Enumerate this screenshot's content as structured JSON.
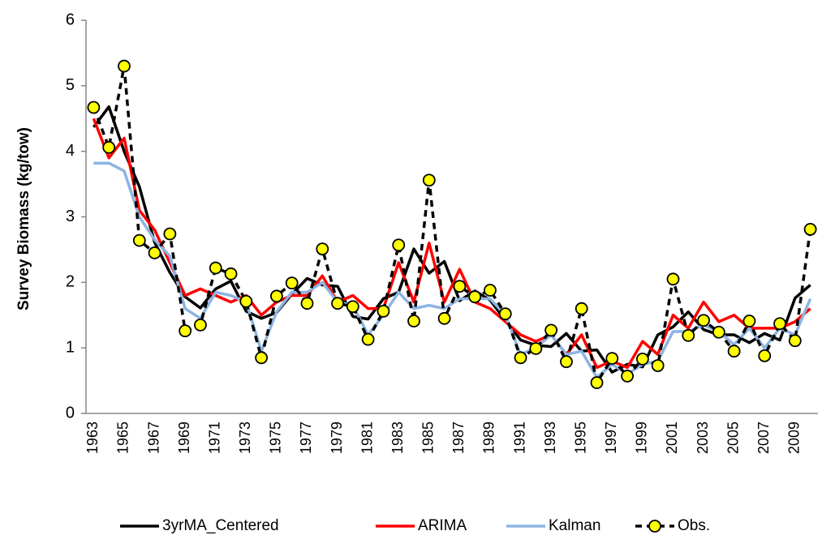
{
  "chart_data": {
    "type": "line",
    "y_label": "Survey Biomass (kg/tow)",
    "categories": [
      "1963",
      null,
      "1965",
      null,
      "1967",
      null,
      "1969",
      null,
      "1971",
      null,
      "1973",
      null,
      "1975",
      null,
      "1977",
      null,
      "1979",
      null,
      "1981",
      null,
      "1983",
      null,
      "1985",
      null,
      "1987",
      null,
      "1989",
      null,
      "1991",
      null,
      "1993",
      null,
      "1995",
      null,
      "1997",
      null,
      "1999",
      null,
      "2001",
      null,
      "2003",
      null,
      "2005",
      null,
      "2007",
      null,
      "2009",
      null
    ],
    "ylim": [
      0,
      6
    ],
    "yticks": [
      0,
      1,
      2,
      3,
      4,
      5,
      6
    ],
    "grid": false,
    "legend": "bottom",
    "series": [
      {
        "name": "3yrMA_Centered",
        "color": "#000000",
        "dash": false,
        "values": [
          4.37,
          4.68,
          4.0,
          3.46,
          2.61,
          2.15,
          1.78,
          1.61,
          1.9,
          2.02,
          1.56,
          1.45,
          1.54,
          1.82,
          2.06,
          1.96,
          1.94,
          1.48,
          1.44,
          1.75,
          1.85,
          2.51,
          2.14,
          2.32,
          1.72,
          1.87,
          1.73,
          1.42,
          1.12,
          1.04,
          1.02,
          1.22,
          0.95,
          0.97,
          0.63,
          0.75,
          0.71,
          1.2,
          1.32,
          1.55,
          1.28,
          1.2,
          1.2,
          1.08,
          1.22,
          1.12,
          1.76,
          1.96
        ]
      },
      {
        "name": "ARIMA",
        "color": "#ff0000",
        "dash": false,
        "values": [
          4.5,
          3.9,
          4.2,
          3.1,
          2.8,
          2.3,
          1.8,
          1.9,
          1.8,
          1.7,
          1.8,
          1.5,
          1.7,
          1.8,
          1.8,
          2.1,
          1.7,
          1.8,
          1.6,
          1.6,
          2.3,
          1.7,
          2.6,
          1.7,
          2.2,
          1.7,
          1.6,
          1.4,
          1.2,
          1.1,
          1.2,
          0.9,
          1.2,
          0.7,
          0.8,
          0.7,
          1.1,
          0.9,
          1.5,
          1.3,
          1.7,
          1.4,
          1.5,
          1.3,
          1.3,
          1.3,
          1.4,
          1.6
        ]
      },
      {
        "name": "Kalman",
        "color": "#8db4e2",
        "dash": false,
        "values": [
          3.82,
          3.82,
          3.7,
          3.0,
          2.65,
          2.4,
          1.6,
          1.45,
          1.85,
          1.8,
          1.7,
          0.95,
          1.55,
          1.85,
          1.85,
          2.0,
          1.7,
          1.65,
          1.2,
          1.5,
          1.85,
          1.6,
          1.65,
          1.6,
          1.75,
          1.75,
          1.75,
          1.5,
          0.9,
          1.0,
          1.2,
          0.9,
          0.95,
          0.55,
          0.75,
          0.6,
          0.75,
          0.8,
          1.25,
          1.25,
          1.35,
          1.25,
          1.05,
          1.3,
          1.0,
          1.3,
          1.2,
          1.75
        ]
      },
      {
        "name": "Obs.",
        "color": "#000000",
        "dash": true,
        "marker": "circle",
        "marker_color": "#ffff00",
        "values": [
          4.67,
          4.06,
          5.3,
          2.64,
          2.45,
          2.74,
          1.26,
          1.35,
          2.22,
          2.13,
          1.71,
          0.85,
          1.79,
          1.99,
          1.68,
          2.51,
          1.68,
          1.63,
          1.13,
          1.56,
          2.57,
          1.41,
          3.56,
          1.45,
          1.94,
          1.78,
          1.88,
          1.52,
          0.85,
          0.99,
          1.27,
          0.79,
          1.6,
          0.47,
          0.84,
          0.57,
          0.83,
          0.73,
          2.05,
          1.19,
          1.42,
          1.24,
          0.95,
          1.41,
          0.88,
          1.37,
          1.11,
          2.81
        ]
      }
    ]
  }
}
